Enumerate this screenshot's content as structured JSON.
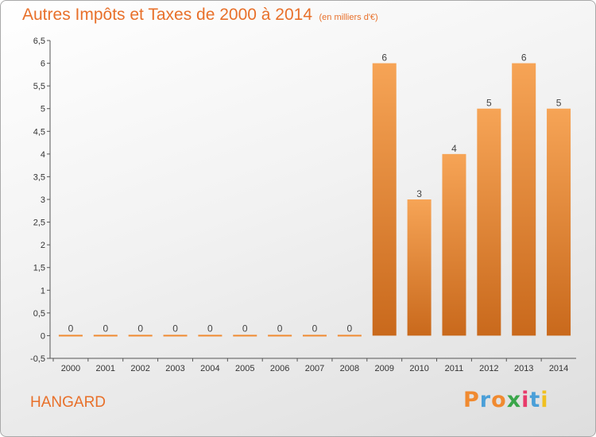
{
  "chart_data": {
    "type": "bar",
    "title": "Autres Impôts et Taxes de 2000 à 2014",
    "subtitle": "(en milliers d'€)",
    "categories": [
      "2000",
      "2001",
      "2002",
      "2003",
      "2004",
      "2005",
      "2006",
      "2007",
      "2008",
      "2009",
      "2010",
      "2011",
      "2012",
      "2013",
      "2014"
    ],
    "values": [
      0,
      0,
      0,
      0,
      0,
      0,
      0,
      0,
      0,
      6,
      3,
      4,
      5,
      6,
      5
    ],
    "value_labels": [
      "0",
      "0",
      "0",
      "0",
      "0",
      "0",
      "0",
      "0",
      "0",
      "6",
      "3",
      "4",
      "5",
      "6",
      "5"
    ],
    "y_ticks": [
      "-0,5",
      "0",
      "0,5",
      "1",
      "1,5",
      "2",
      "2,5",
      "3",
      "3,5",
      "4",
      "4,5",
      "5",
      "5,5",
      "6",
      "6,5"
    ],
    "ylim": [
      -0.5,
      6.5
    ],
    "grid": false,
    "bar_color": "#f08a30",
    "bar_color_dark": "#c8681a"
  },
  "commune": "HANGARD",
  "logo": {
    "letters": [
      "P",
      "r",
      "o",
      "x",
      "i",
      "t",
      "i"
    ],
    "colors": [
      "#f08a30",
      "#4a9fd8",
      "#f08a30",
      "#3aa64a",
      "#e83a6a",
      "#4a9fd8",
      "#f0c020"
    ]
  }
}
